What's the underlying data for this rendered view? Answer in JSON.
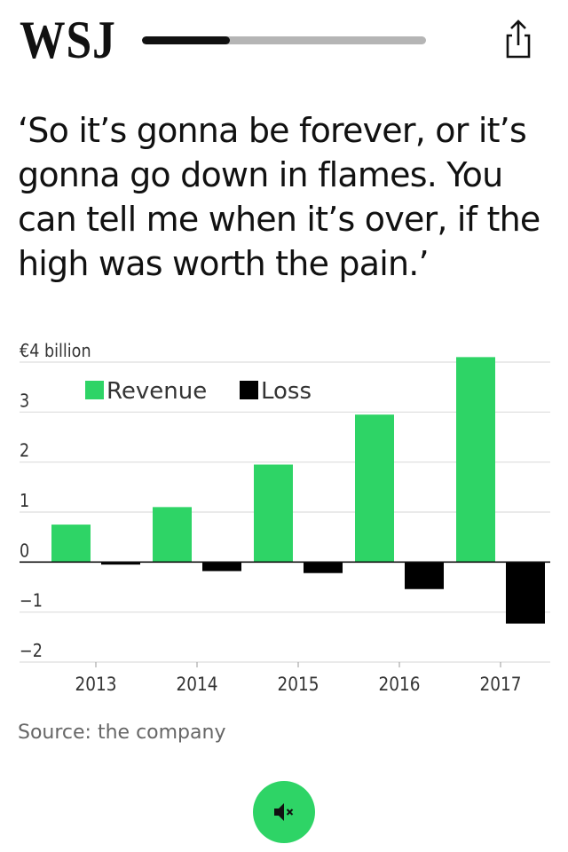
{
  "header": {
    "logo": "WSJ",
    "progress": 0.31,
    "share_icon": "share-icon"
  },
  "quote": "‘So it’s gonna be forever, or it’s gonna go down in flames. You can tell me when it’s over, if the high was worth the pain.’",
  "chart_data": {
    "type": "bar",
    "title": "",
    "ylabel": "",
    "categories": [
      "2013",
      "2014",
      "2015",
      "2016",
      "2017"
    ],
    "series": [
      {
        "name": "Revenue",
        "color": "#2ed466",
        "values": [
          0.75,
          1.1,
          1.95,
          2.95,
          4.1
        ]
      },
      {
        "name": "Loss",
        "color": "#000000",
        "values": [
          -0.05,
          -0.18,
          -0.22,
          -0.54,
          -1.23
        ]
      }
    ],
    "ylim": [
      -2,
      4
    ],
    "yticks": [
      {
        "value": 4,
        "label": "€4 billion"
      },
      {
        "value": 3,
        "label": "3"
      },
      {
        "value": 2,
        "label": "2"
      },
      {
        "value": 1,
        "label": "1"
      },
      {
        "value": 0,
        "label": "0"
      },
      {
        "value": -1,
        "label": "−1"
      },
      {
        "value": -2,
        "label": "−2"
      }
    ],
    "grid": true,
    "legend_position": "top-left"
  },
  "source": "Source: the company",
  "mute_button": {
    "icon": "speaker-muted-icon",
    "color": "#2ed466"
  }
}
